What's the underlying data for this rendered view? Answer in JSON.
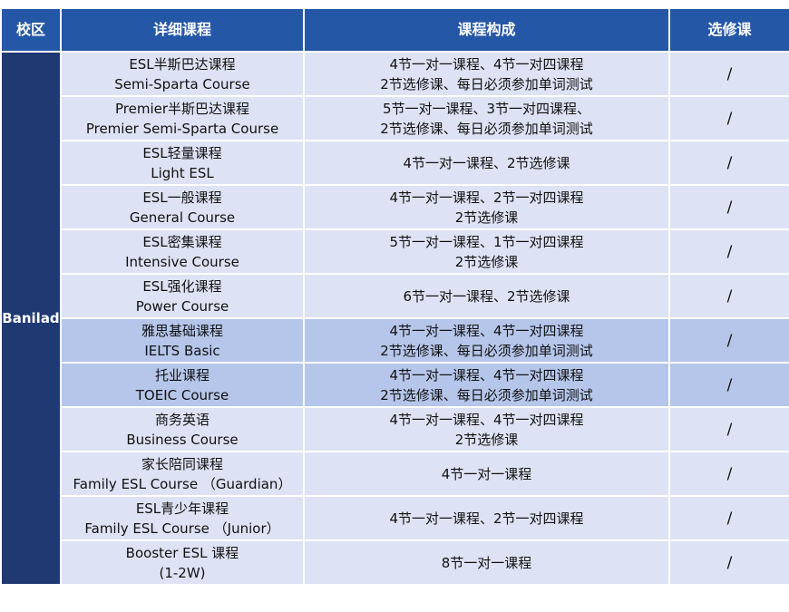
{
  "table": {
    "header": [
      "校区",
      "详细课程",
      "课程构成",
      "选修课"
    ],
    "campus": "Banilad",
    "rows": [
      {
        "course": [
          "ESL半斯巴达课程",
          "Semi-Sparta Course"
        ],
        "composition": [
          "4节一对一课程、4节一对四课程",
          "2节选修课、每日必须参加单词测试"
        ],
        "elective": "/",
        "color": "#dde3f4"
      },
      {
        "course": [
          "Premier半斯巴达课程",
          "Premier Semi-Sparta Course"
        ],
        "composition": [
          "5节一对一课程、3节一对四课程、",
          "2节选修课、每日必须参加单词测试"
        ],
        "elective": "/",
        "color": "#dde3f4"
      },
      {
        "course": [
          "ESL轻量课程",
          "Light ESL"
        ],
        "composition": [
          "4节一对一课程、2节选修课"
        ],
        "elective": "/",
        "color": "#dde3f4"
      },
      {
        "course": [
          "ESL一般课程",
          "General Course"
        ],
        "composition": [
          "4节一对一课程、2节一对四课程",
          "2节选修课"
        ],
        "elective": "/",
        "color": "#dde3f4"
      },
      {
        "course": [
          "ESL密集课程",
          "Intensive Course"
        ],
        "composition": [
          "5节一对一课程、1节一对四课程",
          "2节选修课"
        ],
        "elective": "/",
        "color": "#dde3f4"
      },
      {
        "course": [
          "ESL强化课程",
          "Power Course"
        ],
        "composition": [
          "6节一对一课程、2节选修课"
        ],
        "elective": "/",
        "color": "#dde3f4"
      },
      {
        "course": [
          "雅思基础课程",
          "IELTS Basic"
        ],
        "composition": [
          "4节一对一课程、4节一对四课程",
          "2节选修课、每日必须参加单词测试"
        ],
        "elective": "/",
        "color": "#b5c6ea"
      },
      {
        "course": [
          "托业课程",
          "TOEIC Course"
        ],
        "composition": [
          "4节一对一课程、4节一对四课程",
          "2节选修课、每日必须参加单词测试"
        ],
        "elective": "/",
        "color": "#b5c6ea"
      },
      {
        "course": [
          "商务英语",
          "Business Course"
        ],
        "composition": [
          "4节一对一课程、4节一对四课程",
          "2节选修课"
        ],
        "elective": "/",
        "color": "#dde3f4"
      },
      {
        "course": [
          "家长陪同课程",
          "Family ESL Course （Guardian）"
        ],
        "composition": [
          "4节一对一课程"
        ],
        "elective": "/",
        "color": "#dde3f4"
      },
      {
        "course": [
          "ESL青少年课程",
          "Family ESL Course （Junior）"
        ],
        "composition": [
          "4节一对一课程、2节一对四课程"
        ],
        "elective": "/",
        "color": "#dde3f4"
      },
      {
        "course": [
          "Booster ESL 课程",
          "(1-2W)"
        ],
        "composition": [
          "8节一对一课程"
        ],
        "elective": "/",
        "color": "#dde3f4"
      }
    ]
  }
}
